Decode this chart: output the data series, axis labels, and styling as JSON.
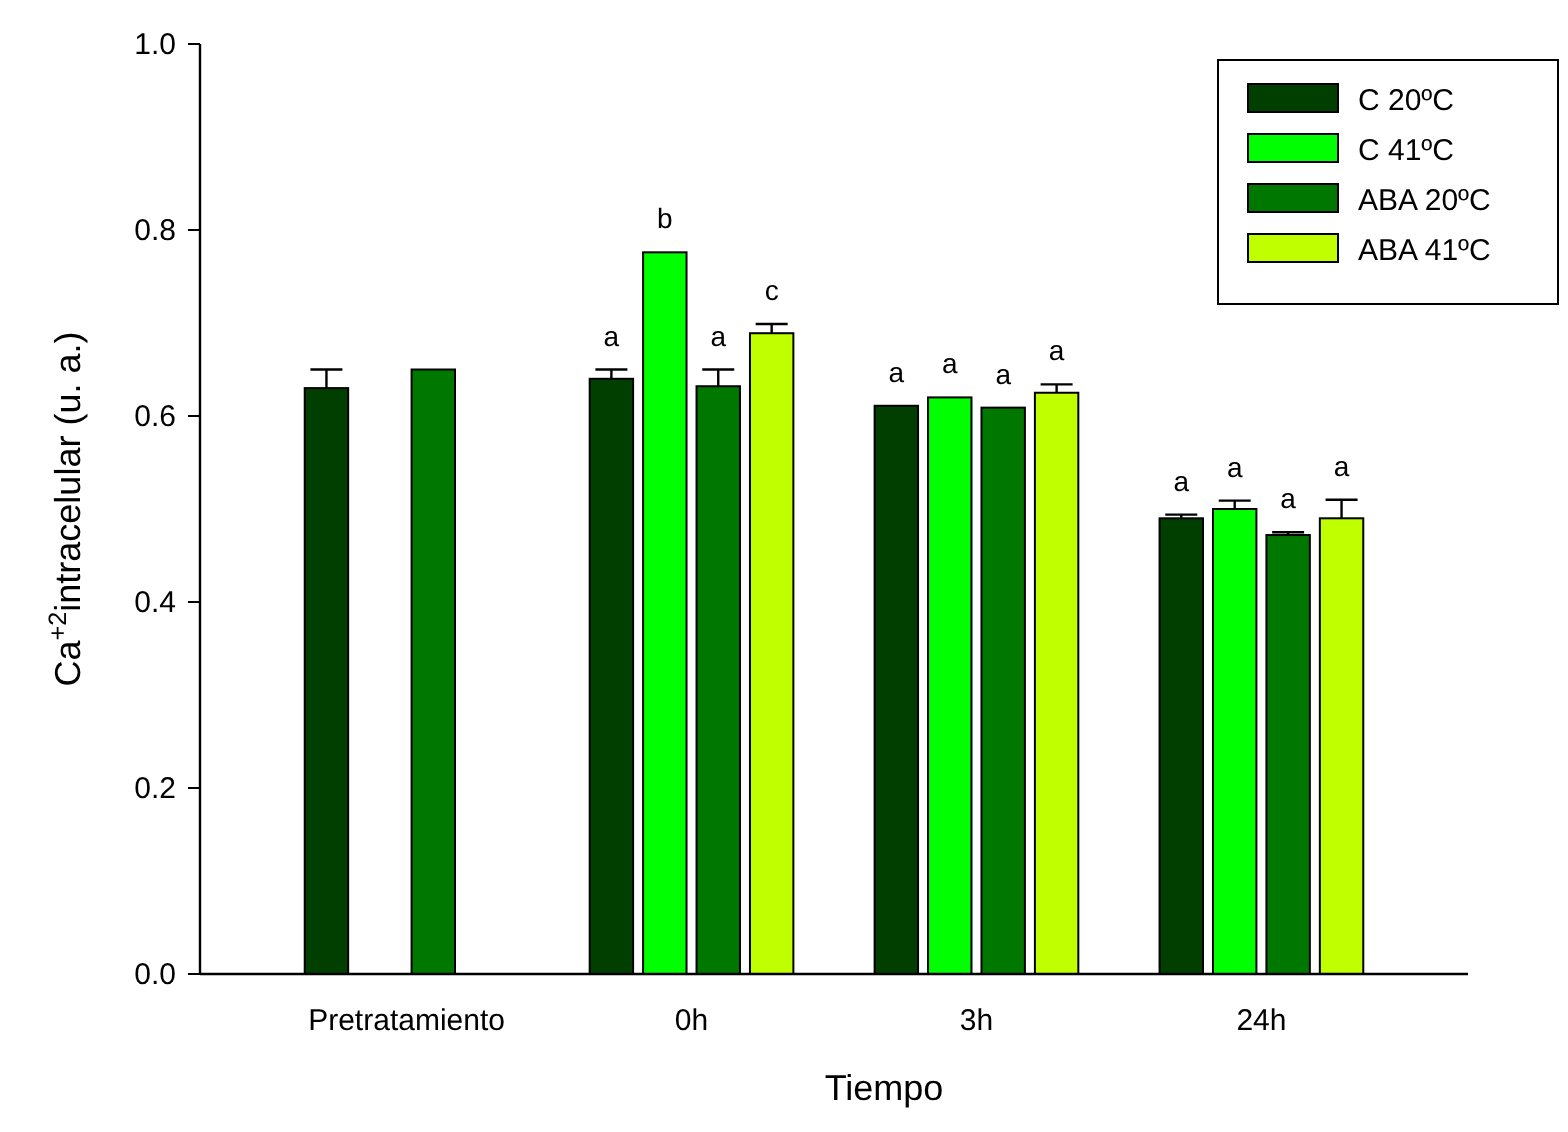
{
  "chart_data": {
    "type": "bar",
    "xlabel": "Tiempo",
    "ylabel": "Ca$^{+2}$intracelular (u. a.)",
    "categories": [
      "Pretratamiento",
      "0h",
      "3h",
      "24h"
    ],
    "ylim": [
      0,
      1
    ],
    "yticks": [
      {
        "value": 0,
        "label": "0.0"
      },
      {
        "value": 0.2,
        "label": "0.2"
      },
      {
        "value": 0.4,
        "label": "0.4"
      },
      {
        "value": 0.6,
        "label": "0.6"
      },
      {
        "value": 0.8,
        "label": "0.8"
      },
      {
        "value": 1,
        "label": "1.0"
      }
    ],
    "legend": "top right",
    "grid": false,
    "series": [
      {
        "name": "C 20ºC",
        "color": "#003f00",
        "values": [
          0.63,
          0.64,
          0.611,
          0.49
        ],
        "errors": [
          0.02,
          0.01,
          null,
          0.004
        ],
        "value_labels": [
          null,
          "a",
          "a",
          "a"
        ]
      },
      {
        "name": "C 41ºC",
        "color": "#00ff00",
        "values": [
          null,
          0.776,
          0.62,
          0.5
        ],
        "errors": [
          null,
          null,
          null,
          0.009
        ],
        "value_labels": [
          null,
          "b",
          "a",
          "a"
        ]
      },
      {
        "name": "ABA 20ºC",
        "color": "#007800",
        "values": [
          0.65,
          0.632,
          0.609,
          0.472
        ],
        "errors": [
          null,
          0.018,
          null,
          0.003
        ],
        "value_labels": [
          null,
          "a",
          "a",
          "a"
        ]
      },
      {
        "name": "ABA 41ºC",
        "color": "#c0ff00",
        "values": [
          null,
          0.689,
          0.625,
          0.49
        ],
        "errors": [
          null,
          0.01,
          0.009,
          0.02
        ],
        "value_labels": [
          null,
          "c",
          "a",
          "a"
        ]
      }
    ]
  }
}
